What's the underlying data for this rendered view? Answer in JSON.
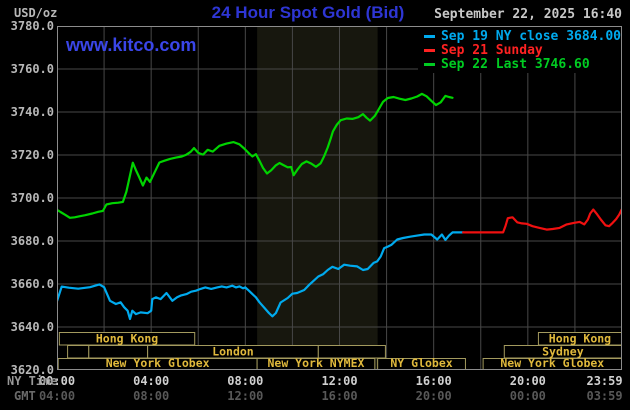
{
  "header": {
    "units_label": "USD/oz",
    "title": "24 Hour Spot Gold (Bid)",
    "datetime": "September 22, 2025 16:40"
  },
  "watermark": "www.kitco.com",
  "legend": [
    {
      "label": "Sep 19 NY close 3684.00",
      "color": "#00aaee"
    },
    {
      "label": "Sep 21 Sunday",
      "color": "#ff2222"
    },
    {
      "label": "Sep 22 Last 3746.60",
      "color": "#00cc22"
    }
  ],
  "axis": {
    "ny_label": "NY Time",
    "gmt_label": "GMT"
  },
  "colors": {
    "background": "#000000",
    "plot_border": "#8c8c8c",
    "grid": "#474747",
    "nymex_band": "#17170e",
    "session_border": "#a39a5e",
    "session_text": "#e0b93c"
  },
  "chart_data": {
    "type": "line",
    "title": "24 Hour Spot Gold (Bid)",
    "ylabel": "USD/oz",
    "y_axis": {
      "min": 3620,
      "max": 3780,
      "tick_step": 20
    },
    "x_axis": {
      "range_hours": [
        0,
        24
      ],
      "grid_step_hours": 2,
      "ny_ticks": [
        {
          "hour": 0,
          "label": "00:00"
        },
        {
          "hour": 4,
          "label": "04:00"
        },
        {
          "hour": 8,
          "label": "08:00"
        },
        {
          "hour": 12,
          "label": "12:00"
        },
        {
          "hour": 16,
          "label": "16:00"
        },
        {
          "hour": 20,
          "label": "20:00"
        },
        {
          "hour": 23.983,
          "label": "23:59"
        }
      ],
      "gmt_ticks": [
        {
          "hour": 0,
          "label": "04:00"
        },
        {
          "hour": 4,
          "label": "08:00"
        },
        {
          "hour": 8,
          "label": "12:00"
        },
        {
          "hour": 12,
          "label": "16:00"
        },
        {
          "hour": 16,
          "label": "20:00"
        },
        {
          "hour": 20,
          "label": "00:00"
        },
        {
          "hour": 23.983,
          "label": "03:59"
        }
      ]
    },
    "nymex_session_band": {
      "from_hour": 8.5,
      "to_hour": 13.62
    },
    "sessions": [
      {
        "row": 0,
        "from": 0.1,
        "to": 5.85,
        "label": "Hong Kong"
      },
      {
        "row": 0,
        "from": 20.45,
        "to": 24,
        "label": "Hong Kong"
      },
      {
        "row": 1,
        "from": 0.45,
        "to": 1.35,
        "label": ""
      },
      {
        "row": 1,
        "from": 1.35,
        "to": 3.85,
        "label": ""
      },
      {
        "row": 1,
        "from": 3.85,
        "to": 11.1,
        "label": "London"
      },
      {
        "row": 1,
        "from": 11.1,
        "to": 13.95,
        "label": ""
      },
      {
        "row": 1,
        "from": 19.0,
        "to": 24,
        "label": "Sydney"
      },
      {
        "row": 2,
        "from": 0.05,
        "to": 8.5,
        "label": "New York Globex"
      },
      {
        "row": 2,
        "from": 8.5,
        "to": 13.5,
        "label": "New York NYMEX"
      },
      {
        "row": 2,
        "from": 13.62,
        "to": 17.35,
        "label": "NY Globex"
      },
      {
        "row": 2,
        "from": 18.1,
        "to": 24,
        "label": "New York Globex"
      }
    ],
    "series": [
      {
        "name": "Sep 19 NY close 3684.00",
        "color": "#00aaee",
        "points": [
          [
            0.0,
            3652.0
          ],
          [
            0.2,
            3658.8
          ],
          [
            0.5,
            3658.3
          ],
          [
            0.9,
            3657.8
          ],
          [
            1.4,
            3658.5
          ],
          [
            1.8,
            3659.8
          ],
          [
            2.0,
            3658.5
          ],
          [
            2.25,
            3652.2
          ],
          [
            2.5,
            3650.7
          ],
          [
            2.7,
            3651.5
          ],
          [
            2.85,
            3649.2
          ],
          [
            3.0,
            3647.6
          ],
          [
            3.1,
            3643.7
          ],
          [
            3.2,
            3647.6
          ],
          [
            3.35,
            3646.0
          ],
          [
            3.55,
            3646.8
          ],
          [
            3.85,
            3646.4
          ],
          [
            4.0,
            3647.6
          ],
          [
            4.05,
            3653.0
          ],
          [
            4.2,
            3653.8
          ],
          [
            4.4,
            3653.0
          ],
          [
            4.65,
            3655.8
          ],
          [
            4.9,
            3652.2
          ],
          [
            5.1,
            3653.8
          ],
          [
            5.25,
            3654.6
          ],
          [
            5.5,
            3655.3
          ],
          [
            5.7,
            3656.4
          ],
          [
            5.9,
            3656.9
          ],
          [
            6.1,
            3657.7
          ],
          [
            6.3,
            3658.4
          ],
          [
            6.55,
            3657.7
          ],
          [
            6.8,
            3658.4
          ],
          [
            7.0,
            3658.9
          ],
          [
            7.2,
            3658.4
          ],
          [
            7.45,
            3659.2
          ],
          [
            7.6,
            3658.4
          ],
          [
            7.75,
            3658.9
          ],
          [
            7.9,
            3658.0
          ],
          [
            8.0,
            3658.4
          ],
          [
            8.15,
            3656.9
          ],
          [
            8.3,
            3655.3
          ],
          [
            8.45,
            3653.8
          ],
          [
            8.6,
            3651.5
          ],
          [
            8.8,
            3649.0
          ],
          [
            9.0,
            3646.5
          ],
          [
            9.15,
            3645.0
          ],
          [
            9.3,
            3646.5
          ],
          [
            9.5,
            3651.4
          ],
          [
            9.8,
            3653.5
          ],
          [
            10.0,
            3655.5
          ],
          [
            10.2,
            3655.8
          ],
          [
            10.5,
            3657.2
          ],
          [
            10.7,
            3659.5
          ],
          [
            10.9,
            3661.5
          ],
          [
            11.1,
            3663.5
          ],
          [
            11.3,
            3664.5
          ],
          [
            11.5,
            3666.5
          ],
          [
            11.7,
            3668.0
          ],
          [
            11.95,
            3667.0
          ],
          [
            12.2,
            3669.0
          ],
          [
            12.45,
            3668.5
          ],
          [
            12.75,
            3668.2
          ],
          [
            13.0,
            3666.5
          ],
          [
            13.2,
            3667.0
          ],
          [
            13.45,
            3669.8
          ],
          [
            13.6,
            3670.5
          ],
          [
            13.75,
            3672.8
          ],
          [
            13.9,
            3676.7
          ],
          [
            14.05,
            3677.4
          ],
          [
            14.2,
            3678.2
          ],
          [
            14.45,
            3680.7
          ],
          [
            14.7,
            3681.4
          ],
          [
            15.0,
            3682.0
          ],
          [
            15.3,
            3682.5
          ],
          [
            15.6,
            3683.0
          ],
          [
            15.9,
            3683.0
          ],
          [
            16.15,
            3680.7
          ],
          [
            16.35,
            3683.0
          ],
          [
            16.5,
            3680.5
          ],
          [
            16.65,
            3682.5
          ],
          [
            16.8,
            3684.0
          ],
          [
            17.25,
            3684.0
          ]
        ]
      },
      {
        "name": "Sep 21 Sunday",
        "color": "#f01010",
        "points": [
          [
            17.25,
            3684.0
          ],
          [
            18.95,
            3684.0
          ],
          [
            19.05,
            3687.0
          ],
          [
            19.15,
            3690.6
          ],
          [
            19.35,
            3691.0
          ],
          [
            19.55,
            3688.7
          ],
          [
            19.75,
            3688.2
          ],
          [
            19.95,
            3688.0
          ],
          [
            20.2,
            3686.9
          ],
          [
            20.5,
            3686.1
          ],
          [
            20.8,
            3685.3
          ],
          [
            21.05,
            3685.6
          ],
          [
            21.35,
            3686.1
          ],
          [
            21.65,
            3687.7
          ],
          [
            21.95,
            3688.4
          ],
          [
            22.2,
            3688.9
          ],
          [
            22.4,
            3687.7
          ],
          [
            22.55,
            3690.0
          ],
          [
            22.65,
            3692.8
          ],
          [
            22.78,
            3694.6
          ],
          [
            22.95,
            3692.3
          ],
          [
            23.1,
            3690.0
          ],
          [
            23.3,
            3687.3
          ],
          [
            23.45,
            3686.9
          ],
          [
            23.6,
            3688.4
          ],
          [
            23.75,
            3690.2
          ],
          [
            23.88,
            3692.3
          ],
          [
            24.0,
            3695.0
          ]
        ]
      },
      {
        "name": "Sep 22 Last 3746.60",
        "color": "#00d400",
        "points": [
          [
            0.0,
            3694.5
          ],
          [
            0.15,
            3693.5
          ],
          [
            0.35,
            3692.2
          ],
          [
            0.55,
            3690.8
          ],
          [
            0.75,
            3691.0
          ],
          [
            0.95,
            3691.5
          ],
          [
            1.2,
            3692.0
          ],
          [
            1.5,
            3692.8
          ],
          [
            1.75,
            3693.6
          ],
          [
            1.95,
            3694.0
          ],
          [
            2.1,
            3697.0
          ],
          [
            2.35,
            3697.6
          ],
          [
            2.6,
            3697.8
          ],
          [
            2.8,
            3698.2
          ],
          [
            2.95,
            3703.0
          ],
          [
            3.1,
            3710.5
          ],
          [
            3.22,
            3716.4
          ],
          [
            3.35,
            3713.0
          ],
          [
            3.5,
            3709.5
          ],
          [
            3.65,
            3705.8
          ],
          [
            3.8,
            3709.5
          ],
          [
            3.95,
            3707.5
          ],
          [
            4.15,
            3712.0
          ],
          [
            4.35,
            3716.5
          ],
          [
            4.55,
            3717.3
          ],
          [
            4.8,
            3718.2
          ],
          [
            5.05,
            3718.8
          ],
          [
            5.3,
            3719.3
          ],
          [
            5.5,
            3720.2
          ],
          [
            5.68,
            3721.5
          ],
          [
            5.82,
            3723.2
          ],
          [
            6.0,
            3721.0
          ],
          [
            6.2,
            3720.2
          ],
          [
            6.4,
            3722.4
          ],
          [
            6.62,
            3721.6
          ],
          [
            6.9,
            3724.3
          ],
          [
            7.2,
            3725.3
          ],
          [
            7.5,
            3726.0
          ],
          [
            7.75,
            3725.0
          ],
          [
            7.95,
            3723.0
          ],
          [
            8.15,
            3720.8
          ],
          [
            8.3,
            3719.3
          ],
          [
            8.45,
            3720.4
          ],
          [
            8.6,
            3717.3
          ],
          [
            8.75,
            3714.0
          ],
          [
            8.92,
            3711.4
          ],
          [
            9.1,
            3712.9
          ],
          [
            9.3,
            3715.2
          ],
          [
            9.45,
            3716.3
          ],
          [
            9.6,
            3715.4
          ],
          [
            9.8,
            3714.3
          ],
          [
            9.95,
            3714.4
          ],
          [
            10.05,
            3710.6
          ],
          [
            10.2,
            3713.0
          ],
          [
            10.4,
            3715.8
          ],
          [
            10.6,
            3717.0
          ],
          [
            10.8,
            3716.0
          ],
          [
            11.0,
            3714.5
          ],
          [
            11.2,
            3716.2
          ],
          [
            11.35,
            3719.5
          ],
          [
            11.5,
            3723.5
          ],
          [
            11.62,
            3727.5
          ],
          [
            11.72,
            3731.0
          ],
          [
            11.88,
            3734.0
          ],
          [
            12.05,
            3736.2
          ],
          [
            12.3,
            3737.0
          ],
          [
            12.55,
            3736.8
          ],
          [
            12.8,
            3737.6
          ],
          [
            13.0,
            3739.0
          ],
          [
            13.15,
            3737.3
          ],
          [
            13.3,
            3736.0
          ],
          [
            13.5,
            3738.2
          ],
          [
            13.68,
            3741.5
          ],
          [
            13.85,
            3744.8
          ],
          [
            14.05,
            3746.5
          ],
          [
            14.3,
            3747.0
          ],
          [
            14.55,
            3746.2
          ],
          [
            14.8,
            3745.6
          ],
          [
            15.05,
            3746.3
          ],
          [
            15.3,
            3747.2
          ],
          [
            15.5,
            3748.4
          ],
          [
            15.7,
            3747.3
          ],
          [
            15.9,
            3745.2
          ],
          [
            16.1,
            3743.2
          ],
          [
            16.3,
            3744.5
          ],
          [
            16.5,
            3747.5
          ],
          [
            16.65,
            3747.0
          ],
          [
            16.8,
            3746.6
          ]
        ]
      }
    ]
  }
}
